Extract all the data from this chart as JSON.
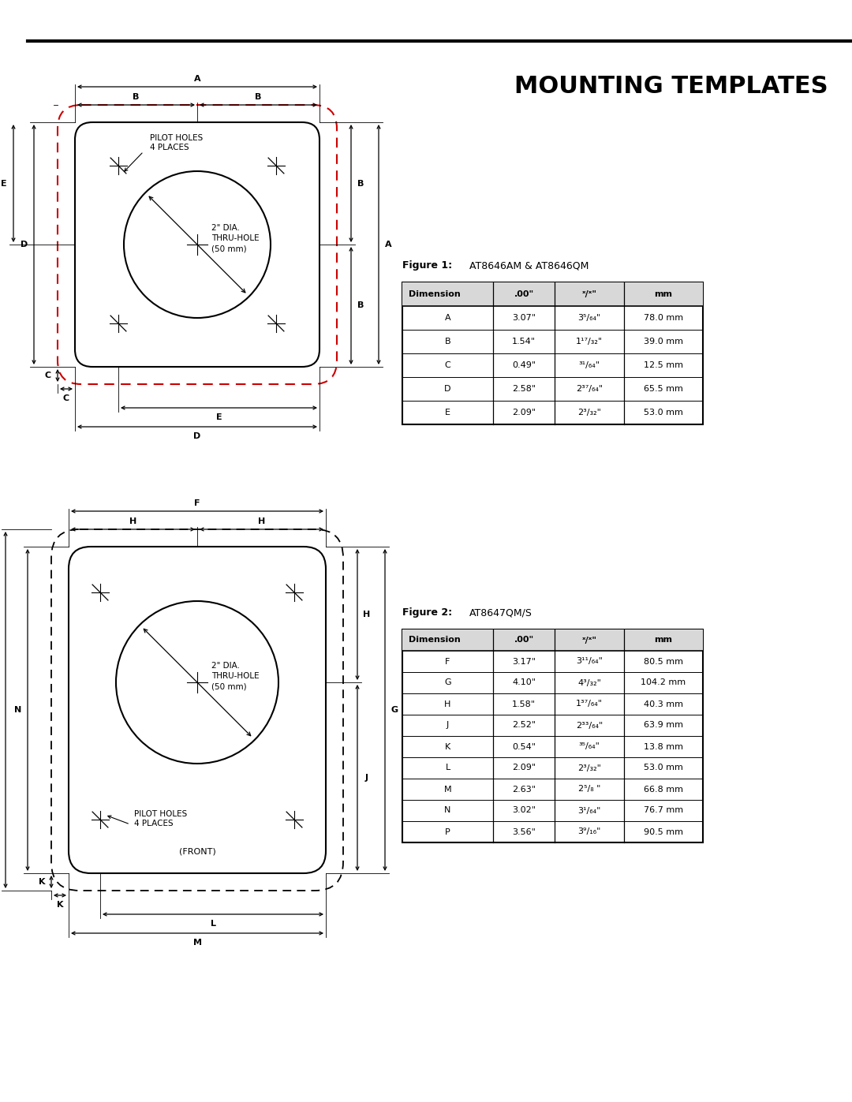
{
  "title": "MOUNTING TEMPLATES",
  "fig1_label": "Figure 1:",
  "fig1_model": "AT8646AM & AT8646QM",
  "fig2_label": "Figure 2:",
  "fig2_model": "AT8647QM/S",
  "table1_rows": [
    [
      "A",
      "3.07\"",
      "3⁵/₆₄\"",
      "78.0 mm"
    ],
    [
      "B",
      "1.54\"",
      "1¹⁷/₃₂\"",
      "39.0 mm"
    ],
    [
      "C",
      "0.49\"",
      "³¹/₆₄\"",
      "12.5 mm"
    ],
    [
      "D",
      "2.58\"",
      "2³⁷/₆₄\"",
      "65.5 mm"
    ],
    [
      "E",
      "2.09\"",
      "2³/₃₂\"",
      "53.0 mm"
    ]
  ],
  "table2_rows": [
    [
      "F",
      "3.17\"",
      "3¹¹/₆₄\"",
      "80.5 mm"
    ],
    [
      "G",
      "4.10\"",
      "4³/₃₂\"",
      "104.2 mm"
    ],
    [
      "H",
      "1.58\"",
      "1³⁷/₆₄\"",
      "40.3 mm"
    ],
    [
      "J",
      "2.52\"",
      "2³³/₆₄\"",
      "63.9 mm"
    ],
    [
      "K",
      "0.54\"",
      "³⁵/₆₄\"",
      "13.8 mm"
    ],
    [
      "L",
      "2.09\"",
      "2³/₃₂\"",
      "53.0 mm"
    ],
    [
      "M",
      "2.63\"",
      "2⁵/₈ \"",
      "66.8 mm"
    ],
    [
      "N",
      "3.02\"",
      "3¹/₆₄\"",
      "76.7 mm"
    ],
    [
      "P",
      "3.56\"",
      "3⁹/₁₆\"",
      "90.5 mm"
    ]
  ],
  "circle_label": "2\" DIA.\nTHRU-HOLE\n(50 mm)",
  "pilot_holes_label1": "PILOT HOLES\n4 PLACES",
  "pilot_holes_label2": "PILOT HOLES\n4 PLACES",
  "front_label": "(FRONT)",
  "table_headers": [
    "Dimension",
    ".00\"",
    "ˣ/ˣ\"",
    "mm"
  ]
}
